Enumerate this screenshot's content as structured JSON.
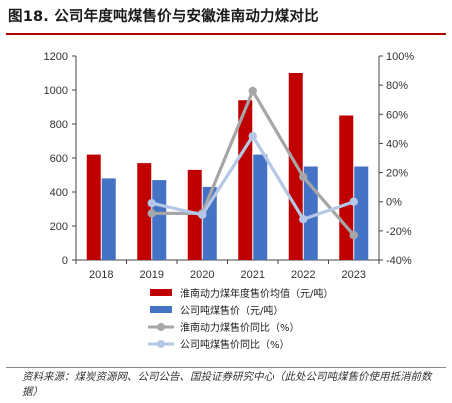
{
  "figure": {
    "title": "图18. 公司年度吨煤售价与安徽淮南动力煤对比",
    "source": "资料来源：煤炭资源网、公司公告、国投证券研究中心（此处公司吨煤售价使用抵消前数据）"
  },
  "colors": {
    "bar_huainan": "#c00000",
    "bar_company": "#4472c4",
    "line_huainan": "#a6a6a6",
    "line_company": "#b4c7e7",
    "title_rule": "#b00000"
  },
  "chart_data": {
    "type": "bar",
    "categories": [
      "2018",
      "2019",
      "2020",
      "2021",
      "2022",
      "2023"
    ],
    "series": [
      {
        "name": "淮南动力煤年度售价均值（元/吨）",
        "kind": "bar",
        "axis": "left",
        "values": [
          620,
          570,
          530,
          940,
          1100,
          850
        ]
      },
      {
        "name": "公司吨煤售价（元/吨）",
        "kind": "bar",
        "axis": "left",
        "values": [
          480,
          470,
          430,
          620,
          550,
          550
        ]
      },
      {
        "name": "淮南动力煤售价同比（%）",
        "kind": "line",
        "axis": "right",
        "values": [
          null,
          -8,
          -8,
          76,
          17,
          -23
        ]
      },
      {
        "name": "公司吨煤售价同比（%）",
        "kind": "line",
        "axis": "right",
        "values": [
          null,
          -1,
          -9,
          45,
          -12,
          0
        ]
      }
    ],
    "y_left": {
      "min": 0,
      "max": 1200,
      "step": 200,
      "ticks": [
        "0",
        "200",
        "400",
        "600",
        "800",
        "1000",
        "1200"
      ]
    },
    "y_right": {
      "min": -40,
      "max": 100,
      "step": 20,
      "ticks": [
        "-40%",
        "-20%",
        "0%",
        "20%",
        "40%",
        "60%",
        "80%",
        "100%"
      ]
    },
    "grid": false,
    "legend_position": "bottom"
  }
}
